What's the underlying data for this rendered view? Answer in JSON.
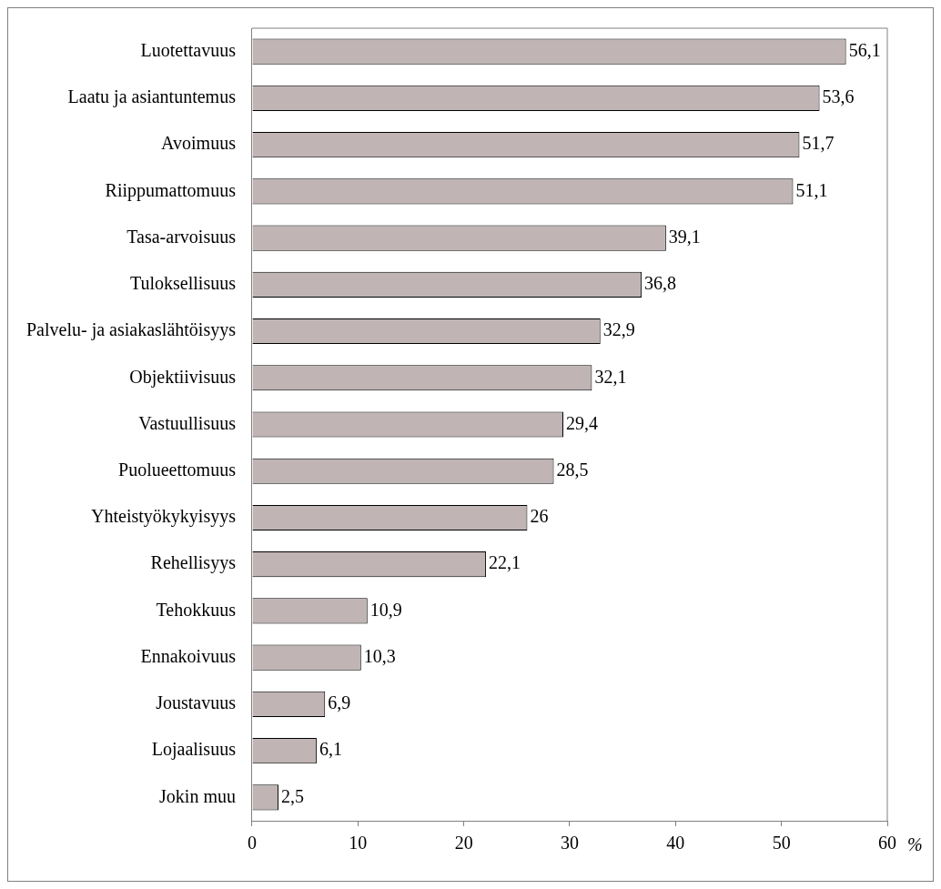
{
  "chart_data": {
    "type": "bar",
    "orientation": "horizontal",
    "xlabel": "%",
    "categories": [
      "Luotettavuus",
      "Laatu ja asiantuntemus",
      "Avoimuus",
      "Riippumattomuus",
      "Tasa-arvoisuus",
      "Tuloksellisuus",
      "Palvelu- ja asiakaslähtöisyys",
      "Objektiivisuus",
      "Vastuullisuus",
      "Puolueettomuus",
      "Yhteistyökykyisyys",
      "Rehellisyys",
      "Tehokkuus",
      "Ennakoivuus",
      "Joustavuus",
      "Lojaalisuus",
      "Jokin muu"
    ],
    "values": [
      56.1,
      53.6,
      51.7,
      51.1,
      39.1,
      36.8,
      32.9,
      32.1,
      29.4,
      28.5,
      26,
      22.1,
      10.9,
      10.3,
      6.9,
      6.1,
      2.5
    ],
    "value_labels": [
      "56,1",
      "53,6",
      "51,7",
      "51,1",
      "39,1",
      "36,8",
      "32,9",
      "32,1",
      "29,4",
      "28,5",
      "26",
      "22,1",
      "10,9",
      "10,3",
      "6,9",
      "6,1",
      "2,5"
    ],
    "color": "#c0b4b4",
    "xlim": [
      0,
      60
    ],
    "xticks": [
      0,
      10,
      20,
      30,
      40,
      50,
      60
    ],
    "grid": false,
    "legend": false
  }
}
